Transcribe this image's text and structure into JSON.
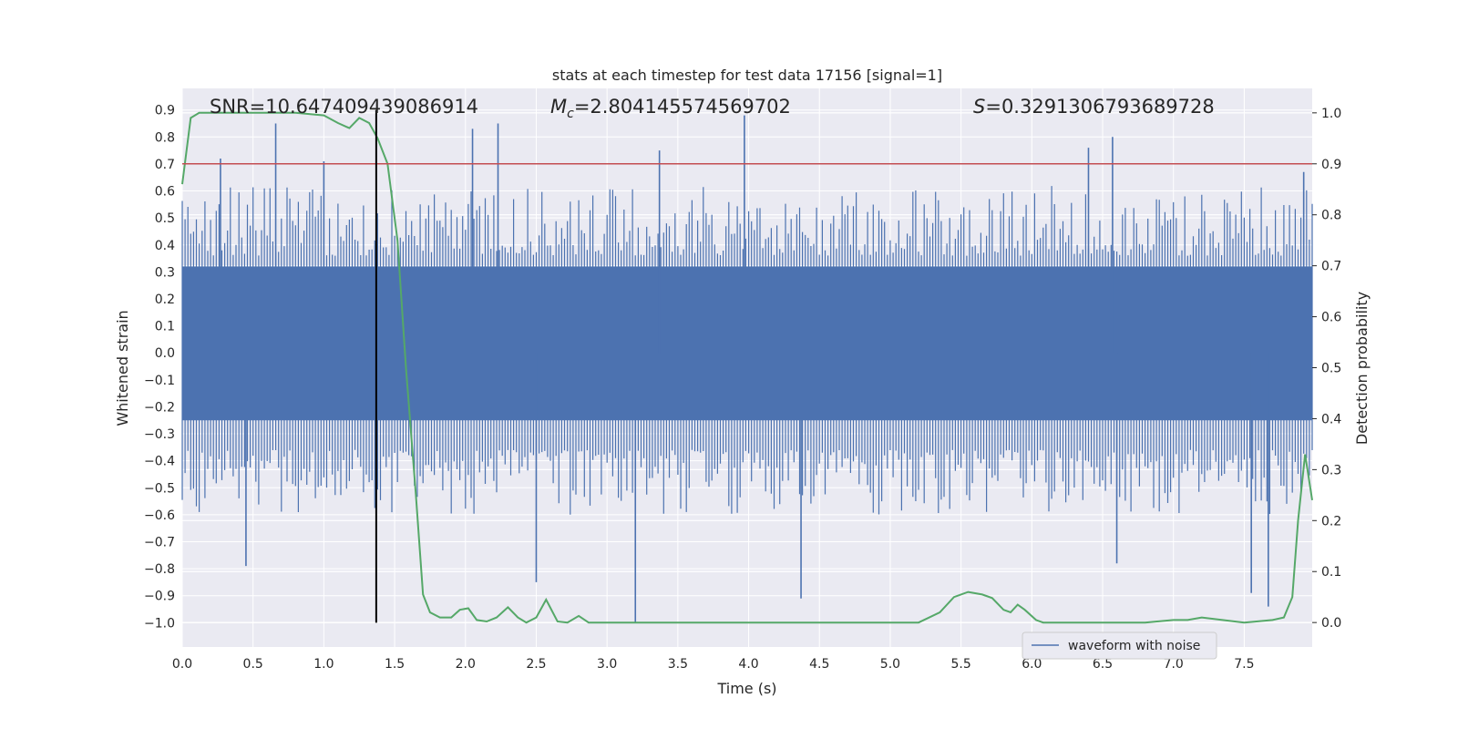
{
  "chart_data": {
    "type": "line",
    "title": "stats at each timestep for test data 17156 [signal=1]",
    "xlabel": "Time (s)",
    "ylabel": "Whitened strain",
    "y2label": "Detection probability",
    "xlim": [
      0.0,
      7.98
    ],
    "ylim": [
      -1.09,
      0.98
    ],
    "y2lim": [
      -0.048,
      1.048
    ],
    "xticks": [
      "0.0",
      "0.5",
      "1.0",
      "1.5",
      "2.0",
      "2.5",
      "3.0",
      "3.5",
      "4.0",
      "4.5",
      "5.0",
      "5.5",
      "6.0",
      "6.5",
      "7.0",
      "7.5"
    ],
    "xtick_values": [
      0.0,
      0.5,
      1.0,
      1.5,
      2.0,
      2.5,
      3.0,
      3.5,
      4.0,
      4.5,
      5.0,
      5.5,
      6.0,
      6.5,
      7.0,
      7.5
    ],
    "yticks": [
      "0.9",
      "0.8",
      "0.7",
      "0.6",
      "0.5",
      "0.4",
      "0.3",
      "0.2",
      "0.1",
      "0.0",
      "−0.1",
      "−0.2",
      "−0.3",
      "−0.4",
      "−0.5",
      "−0.6",
      "−0.7",
      "−0.8",
      "−0.9",
      "−1.0"
    ],
    "ytick_values": [
      0.9,
      0.8,
      0.7,
      0.6,
      0.5,
      0.4,
      0.3,
      0.2,
      0.1,
      0.0,
      -0.1,
      -0.2,
      -0.3,
      -0.4,
      -0.5,
      -0.6,
      -0.7,
      -0.8,
      -0.9,
      -1.0
    ],
    "y2ticks": [
      "1.0",
      "0.9",
      "0.8",
      "0.7",
      "0.6",
      "0.5",
      "0.4",
      "0.3",
      "0.2",
      "0.1",
      "0.0"
    ],
    "y2tick_values": [
      1.0,
      0.9,
      0.8,
      0.7,
      0.6,
      0.5,
      0.4,
      0.3,
      0.2,
      0.1,
      0.0
    ],
    "annotations": {
      "snr": "SNR=10.647409439086914",
      "mc_symbol": "M",
      "mc_sub": "c",
      "mc_value": "=2.804145574569702",
      "s_symbol": "S",
      "s_value": "=0.3291306793689728"
    },
    "threshold": {
      "value": 0.9,
      "axis": "y2",
      "color": "#c44e52"
    },
    "vline": {
      "x": 1.37,
      "y_from": -1.0,
      "y_to": 0.9,
      "color": "#000000"
    },
    "legend": {
      "label": "waveform with noise",
      "location": "lower-right"
    },
    "waveform": {
      "name": "waveform with noise",
      "color": "#4c72b0",
      "dt": 0.02,
      "core_band": [
        -0.25,
        0.32
      ],
      "peaks": [
        {
          "x": 0.27,
          "v": 0.72
        },
        {
          "x": 0.66,
          "v": 0.85
        },
        {
          "x": 1.0,
          "v": 0.71
        },
        {
          "x": 2.05,
          "v": 0.83
        },
        {
          "x": 2.23,
          "v": 0.85
        },
        {
          "x": 3.37,
          "v": 0.75
        },
        {
          "x": 3.97,
          "v": 0.88
        },
        {
          "x": 6.4,
          "v": 0.76
        },
        {
          "x": 6.57,
          "v": 0.8
        },
        {
          "x": 7.92,
          "v": 0.67
        }
      ],
      "troughs": [
        {
          "x": 0.45,
          "v": -0.79
        },
        {
          "x": 2.5,
          "v": -0.85
        },
        {
          "x": 3.2,
          "v": -1.0
        },
        {
          "x": 4.37,
          "v": -0.91
        },
        {
          "x": 6.6,
          "v": -0.78
        },
        {
          "x": 7.55,
          "v": -0.89
        },
        {
          "x": 7.67,
          "v": -0.94
        }
      ]
    },
    "probability": {
      "name": "Detection probability",
      "color": "#55a868",
      "x": [
        0.0,
        0.06,
        0.12,
        0.25,
        0.5,
        0.8,
        1.0,
        1.1,
        1.18,
        1.25,
        1.32,
        1.38,
        1.45,
        1.52,
        1.58,
        1.65,
        1.7,
        1.75,
        1.82,
        1.9,
        1.96,
        2.02,
        2.08,
        2.15,
        2.22,
        2.3,
        2.37,
        2.43,
        2.5,
        2.57,
        2.65,
        2.72,
        2.8,
        2.87,
        2.94,
        3.1,
        3.3,
        3.6,
        4.0,
        4.3,
        4.6,
        4.8,
        5.2,
        5.35,
        5.45,
        5.55,
        5.65,
        5.72,
        5.8,
        5.85,
        5.9,
        5.95,
        6.03,
        6.08,
        6.2,
        6.5,
        6.8,
        7.0,
        7.1,
        7.2,
        7.5,
        7.7,
        7.78,
        7.84,
        7.88,
        7.93,
        7.98
      ],
      "y": [
        0.86,
        0.99,
        1.0,
        1.0,
        1.0,
        1.0,
        0.995,
        0.98,
        0.97,
        0.99,
        0.98,
        0.95,
        0.9,
        0.75,
        0.5,
        0.25,
        0.055,
        0.02,
        0.01,
        0.01,
        0.025,
        0.028,
        0.005,
        0.002,
        0.01,
        0.03,
        0.01,
        0.0,
        0.01,
        0.045,
        0.002,
        0.0,
        0.013,
        0.0,
        0.0,
        0.0,
        0.0,
        0.0,
        0.0,
        0.0,
        0.0,
        0.0,
        0.0,
        0.02,
        0.05,
        0.06,
        0.055,
        0.048,
        0.025,
        0.02,
        0.035,
        0.025,
        0.005,
        0.0,
        0.0,
        0.0,
        0.0,
        0.005,
        0.005,
        0.01,
        0.0,
        0.005,
        0.01,
        0.05,
        0.2,
        0.33,
        0.24
      ]
    }
  }
}
